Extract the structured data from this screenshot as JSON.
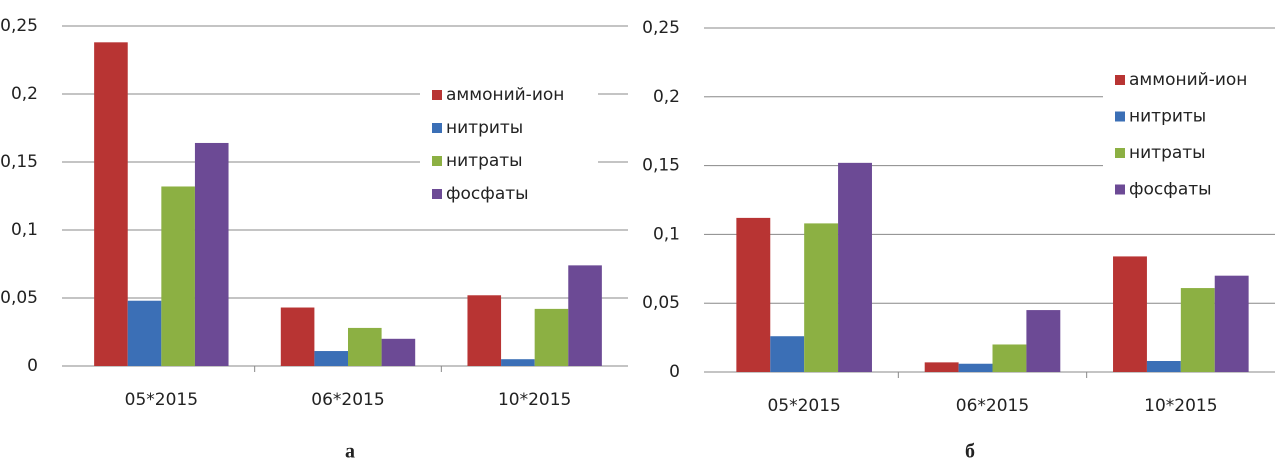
{
  "chart_data": [
    {
      "type": "bar",
      "caption": "а",
      "categories": [
        "05*2015",
        "06*2015",
        "10*2015"
      ],
      "series": [
        {
          "name": "аммоний-ион",
          "color": "#b83433",
          "values": [
            0.238,
            0.043,
            0.052
          ]
        },
        {
          "name": "нитриты",
          "color": "#3b6fb6",
          "values": [
            0.048,
            0.011,
            0.005
          ]
        },
        {
          "name": "нитраты",
          "color": "#8cb043",
          "values": [
            0.132,
            0.028,
            0.042
          ]
        },
        {
          "name": "фосфаты",
          "color": "#6c4a95",
          "values": [
            0.164,
            0.02,
            0.074
          ]
        }
      ],
      "ylim": [
        0,
        0.25
      ],
      "yticks": [
        0,
        {
          "value": 0.05,
          "label": "0,05"
        },
        {
          "value": 0.1,
          "label": "0,1"
        },
        {
          "value": 0.15,
          "label": "0,15"
        },
        {
          "value": 0.2,
          "label": "0,2"
        },
        {
          "value": 0.25,
          "label": "0,25"
        }
      ],
      "grid": true,
      "legend": "right"
    },
    {
      "type": "bar",
      "caption": "б",
      "categories": [
        "05*2015",
        "06*2015",
        "10*2015"
      ],
      "series": [
        {
          "name": "аммоний-ион",
          "color": "#b83433",
          "values": [
            0.112,
            0.007,
            0.084
          ]
        },
        {
          "name": "нитриты",
          "color": "#3b6fb6",
          "values": [
            0.026,
            0.006,
            0.008
          ]
        },
        {
          "name": "нитраты",
          "color": "#8cb043",
          "values": [
            0.108,
            0.02,
            0.061
          ]
        },
        {
          "name": "фосфаты",
          "color": "#6c4a95",
          "values": [
            0.152,
            0.045,
            0.07
          ]
        }
      ],
      "ylim": [
        0,
        0.25
      ],
      "yticks": [
        0,
        {
          "value": 0.05,
          "label": "0,05"
        },
        {
          "value": 0.1,
          "label": "0,1"
        },
        {
          "value": 0.15,
          "label": "0,15"
        },
        {
          "value": 0.2,
          "label": "0,2"
        },
        {
          "value": 0.25,
          "label": "0,25"
        }
      ],
      "grid": true,
      "legend": "right"
    }
  ]
}
